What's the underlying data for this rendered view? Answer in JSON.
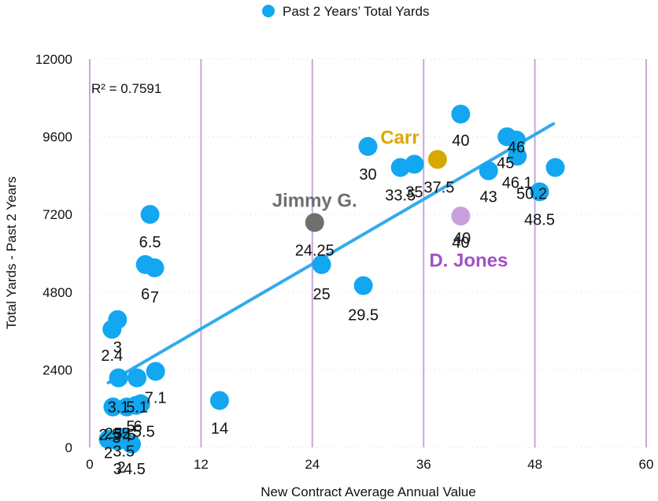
{
  "chart_data": {
    "type": "scatter",
    "xlabel": "New Contract Average Annual Value",
    "ylabel": "Total Yards - Past 2 Years",
    "xlim": [
      0,
      60
    ],
    "ylim": [
      0,
      12000
    ],
    "xticks": [
      0,
      12,
      24,
      36,
      48,
      60
    ],
    "yticks": [
      0,
      2400,
      4800,
      7200,
      9600,
      12000
    ],
    "grid": "vertical",
    "legend": {
      "position": "top",
      "entries": [
        "Past 2 Years’ Total Yards"
      ]
    },
    "series": [
      {
        "name": "Past 2 Years’ Total Yards",
        "color": "#12a7f0",
        "points": [
          {
            "x": 40,
            "y": 10300,
            "label": "40"
          },
          {
            "x": 30,
            "y": 9300,
            "label": "30"
          },
          {
            "x": 33.5,
            "y": 8650,
            "label": "33.5"
          },
          {
            "x": 35,
            "y": 8750,
            "label": "35"
          },
          {
            "x": 45,
            "y": 9600,
            "label": "45"
          },
          {
            "x": 46,
            "y": 9500,
            "label": "46"
          },
          {
            "x": 46.1,
            "y": 9000,
            "label": "46.1"
          },
          {
            "x": 43,
            "y": 8550,
            "label": "43"
          },
          {
            "x": 50.2,
            "y": 8650,
            "label": "50.2"
          },
          {
            "x": 48.5,
            "y": 7900,
            "label": "48.5"
          },
          {
            "x": 25,
            "y": 5650,
            "label": "25"
          },
          {
            "x": 29.5,
            "y": 5000,
            "label": "29.5"
          },
          {
            "x": 6.5,
            "y": 7200,
            "label": "6.5"
          },
          {
            "x": 6,
            "y": 5650,
            "label": "6"
          },
          {
            "x": 7,
            "y": 5550,
            "label": "7"
          },
          {
            "x": 2.4,
            "y": 3650,
            "label": "2.4"
          },
          {
            "x": 3,
            "y": 3950,
            "label": "3"
          },
          {
            "x": 3.1,
            "y": 2150,
            "label": "3.1"
          },
          {
            "x": 5.1,
            "y": 2150,
            "label": "5.1"
          },
          {
            "x": 7.1,
            "y": 2350,
            "label": "7.1"
          },
          {
            "x": 14,
            "y": 1450,
            "label": "14"
          },
          {
            "x": 2.5,
            "y": 1250,
            "label": "2.5"
          },
          {
            "x": 4,
            "y": 1250,
            "label": "4"
          },
          {
            "x": 5.5,
            "y": 1350,
            "label": "5.5"
          },
          {
            "x": 5,
            "y": 1300,
            "label": "5"
          },
          {
            "x": 2,
            "y": 250,
            "label": "2"
          },
          {
            "x": 3.5,
            "y": 300,
            "label": "3.5"
          },
          {
            "x": 3,
            "y": 200,
            "label": "3"
          },
          {
            "x": 4.5,
            "y": 100,
            "label": "4.5"
          }
        ]
      }
    ],
    "highlights": [
      {
        "name": "Carr",
        "x": 37.5,
        "y": 8900,
        "label": "37.5",
        "color": "#d9a800"
      },
      {
        "name": "Jimmy G.",
        "x": 24.25,
        "y": 6950,
        "label": "24.25",
        "color": "#6f6f6f"
      },
      {
        "name": "D. Jones",
        "x": 40,
        "y": 7150,
        "label": "40",
        "color": "#c9a0dc",
        "label_color": "#a350c7"
      }
    ],
    "extra_labels": [
      "40",
      "23",
      "5",
      "2",
      "3",
      "5",
      "6",
      "5"
    ],
    "trendline": {
      "x1": 2,
      "y1": 2000,
      "x2": 50,
      "y2": 10000,
      "color": "#33aaee"
    },
    "r_squared": "R² = 0.7591"
  }
}
